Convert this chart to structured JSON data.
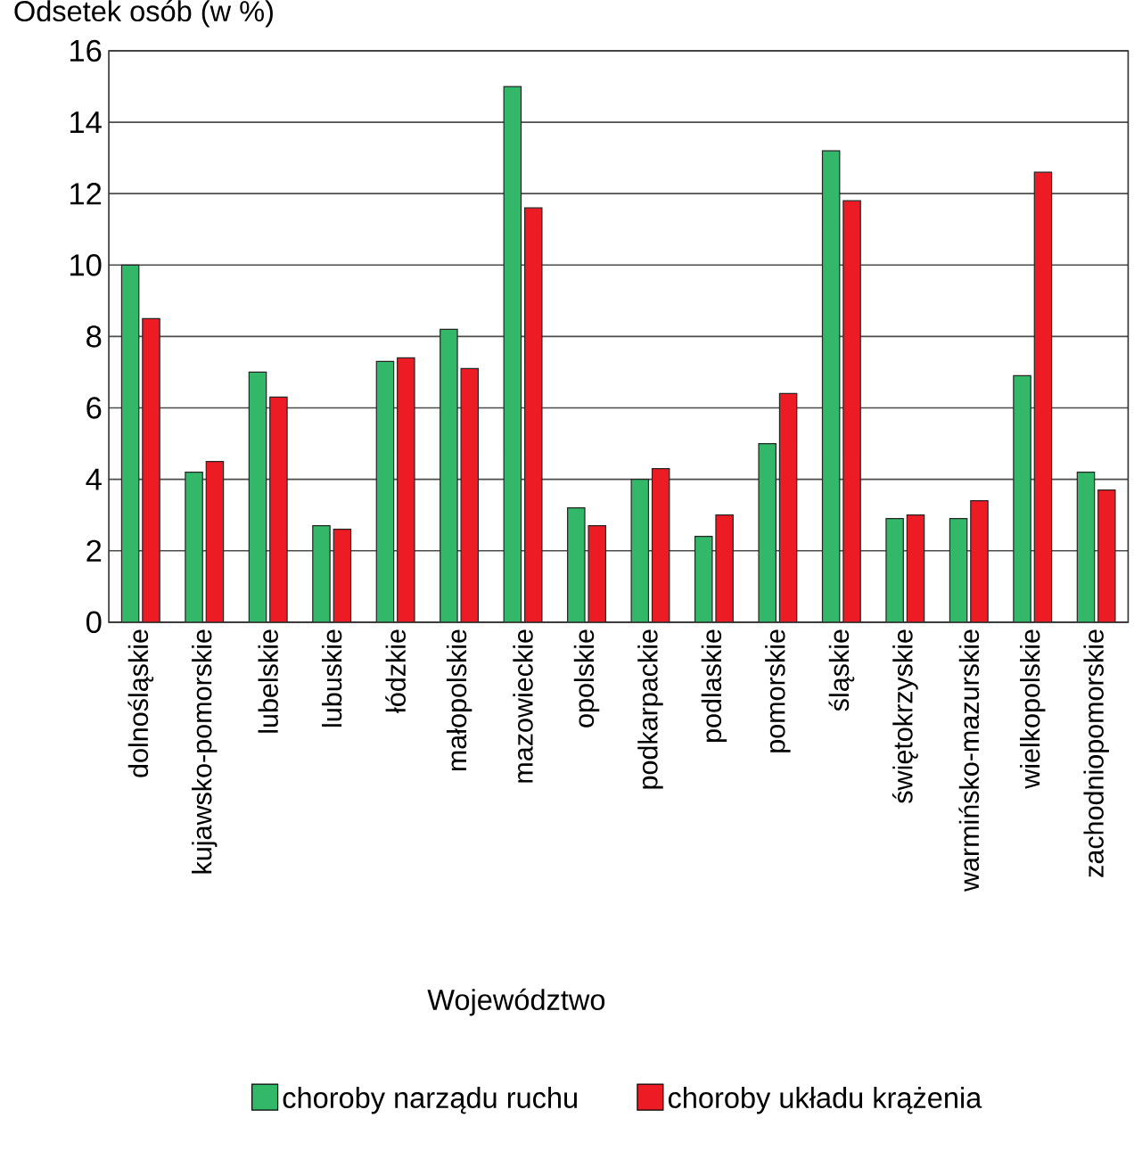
{
  "chart_data": {
    "type": "bar",
    "ylabel": "Odsetek osób (w %)",
    "xlabel": "Województwo",
    "categories": [
      "dolnośląskie",
      "kujawsko-pomorskie",
      "lubelskie",
      "lubuskie",
      "łódzkie",
      "małopolskie",
      "mazowieckie",
      "opolskie",
      "podkarpackie",
      "podlaskie",
      "pomorskie",
      "śląskie",
      "świętokrzyskie",
      "warmińsko-mazurskie",
      "wielkopolskie",
      "zachodniopomorskie"
    ],
    "series": [
      {
        "name": "choroby narządu ruchu",
        "color": "#33b86a",
        "values": [
          10.0,
          4.2,
          7.0,
          2.7,
          7.3,
          8.2,
          15.0,
          3.2,
          4.0,
          2.4,
          5.0,
          13.2,
          2.9,
          2.9,
          6.9,
          4.2
        ]
      },
      {
        "name": "choroby układu krążenia",
        "color": "#ed1c24",
        "values": [
          8.5,
          4.5,
          6.3,
          2.6,
          7.4,
          7.1,
          11.6,
          2.7,
          4.3,
          3.0,
          6.4,
          11.8,
          3.0,
          3.4,
          12.6,
          3.7
        ]
      }
    ],
    "ylim": [
      0,
      16
    ],
    "yticks": [
      0,
      2,
      4,
      6,
      8,
      10,
      12,
      14,
      16
    ],
    "grid": "y",
    "legend": "bottom"
  }
}
